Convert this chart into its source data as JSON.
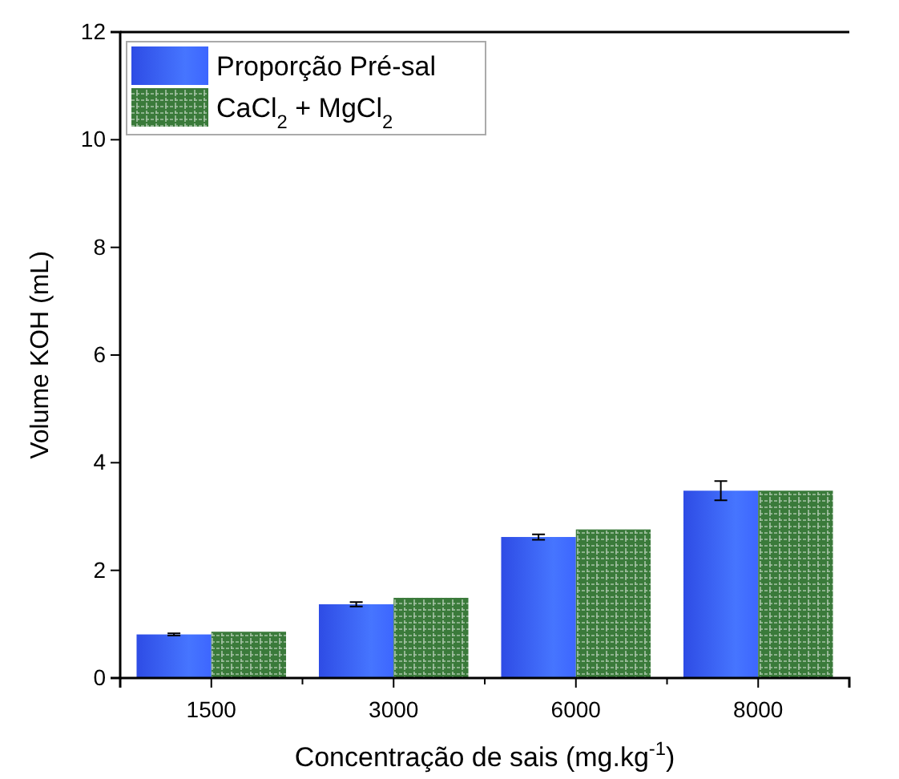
{
  "chart_data": {
    "type": "bar",
    "xlabel": "Concentração de sais (mg.kg$^{-1}$)",
    "ylabel": "Volume KOH (mL)",
    "categories": [
      "1500",
      "3000",
      "6000",
      "8000"
    ],
    "series": [
      {
        "name": "Proporção Pré-sal",
        "color": "#3355ff",
        "values": [
          0.81,
          1.37,
          2.62,
          3.48
        ],
        "errors": [
          0.02,
          0.04,
          0.05,
          0.18
        ]
      },
      {
        "name": "CaCl$_{2}$ + MgCl$_{2}$",
        "color": "#3a7a3a",
        "values": [
          0.86,
          1.49,
          2.76,
          3.48
        ]
      }
    ],
    "ylim": [
      0,
      12
    ],
    "yticks": [
      0,
      2,
      4,
      6,
      8,
      10,
      12
    ],
    "legend": "top left"
  }
}
